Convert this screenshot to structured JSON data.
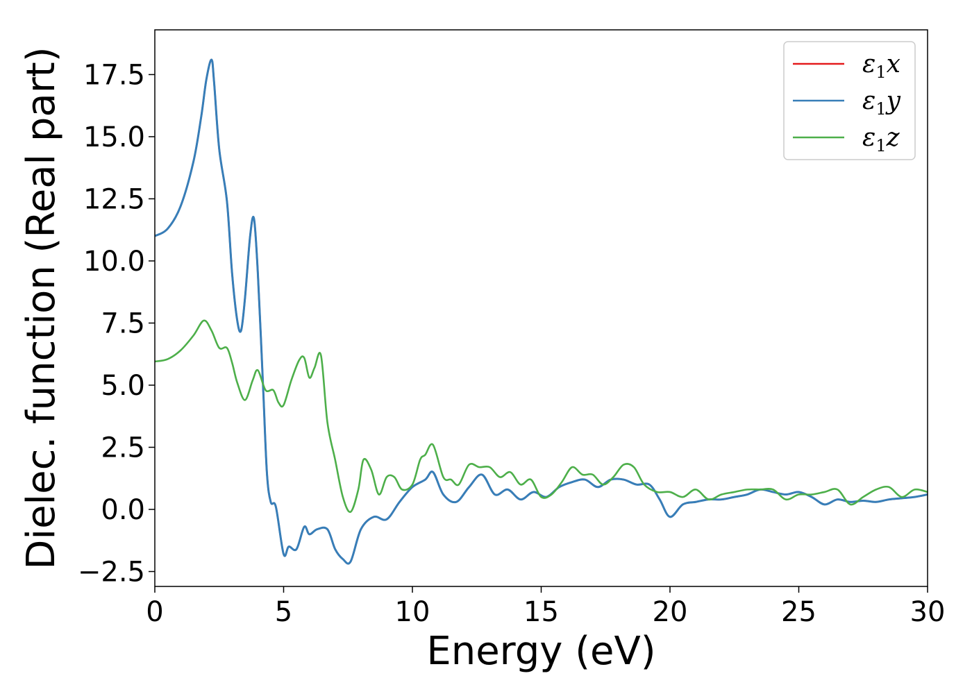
{
  "chart_data": {
    "type": "line",
    "xlabel": "Energy (eV)",
    "ylabel": "Dielec. function (Real part)",
    "xlim": [
      0,
      30
    ],
    "ylim": [
      -3.1,
      19.3
    ],
    "xticks": [
      0,
      5,
      10,
      15,
      20,
      25,
      30
    ],
    "xtick_labels": [
      "0",
      "5",
      "10",
      "15",
      "20",
      "25",
      "30"
    ],
    "yticks": [
      -2.5,
      0,
      2.5,
      5,
      7.5,
      10,
      12.5,
      15,
      17.5
    ],
    "ytick_labels": [
      "−2.5",
      "0.0",
      "2.5",
      "5.0",
      "7.5",
      "10.0",
      "12.5",
      "15.0",
      "17.5"
    ],
    "grid": false,
    "legend_position": "top-right",
    "legend": [
      {
        "symbol": "ε",
        "sub": "1",
        "axis": "x",
        "color": "#e41a1c"
      },
      {
        "symbol": "ε",
        "sub": "1",
        "axis": "y",
        "color": "#377eb8"
      },
      {
        "symbol": "ε",
        "sub": "1",
        "axis": "z",
        "color": "#4daf4a"
      }
    ],
    "series": [
      {
        "color": "#e41a1c",
        "x": [
          0,
          0.5,
          1.0,
          1.5,
          1.8,
          2.0,
          2.2,
          2.3,
          2.5,
          2.8,
          3.0,
          3.2,
          3.35,
          3.5,
          3.7,
          3.85,
          4.0,
          4.2,
          4.35,
          4.5,
          4.7,
          5.0,
          5.2,
          5.5,
          5.8,
          6.0,
          6.3,
          6.7,
          7.0,
          7.3,
          7.6,
          8.0,
          8.5,
          9.0,
          9.5,
          10.0,
          10.5,
          10.8,
          11.2,
          11.7,
          12.2,
          12.7,
          13.2,
          13.7,
          14.2,
          14.7,
          15.2,
          15.7,
          16.2,
          16.7,
          17.2,
          17.7,
          18.2,
          18.7,
          19.2,
          19.6,
          20.0,
          20.5,
          21.0,
          21.5,
          22.0,
          22.5,
          23.0,
          23.5,
          24.0,
          24.5,
          25.0,
          25.5,
          26.0,
          26.5,
          27.0,
          27.5,
          28.0,
          28.5,
          29.0,
          29.5,
          30.0
        ],
        "y": [
          11.0,
          11.3,
          12.2,
          14.0,
          15.8,
          17.3,
          18.1,
          17.2,
          14.5,
          12.4,
          9.5,
          7.6,
          7.2,
          8.5,
          11.0,
          11.7,
          9.5,
          5.0,
          1.5,
          0.3,
          0.1,
          -1.8,
          -1.5,
          -1.6,
          -0.7,
          -1.0,
          -0.8,
          -0.8,
          -1.6,
          -2.0,
          -2.1,
          -0.8,
          -0.3,
          -0.4,
          0.3,
          0.9,
          1.2,
          1.5,
          0.6,
          0.3,
          0.9,
          1.4,
          0.6,
          0.8,
          0.4,
          0.7,
          0.5,
          0.9,
          1.1,
          1.2,
          0.9,
          1.2,
          1.2,
          1.0,
          1.0,
          0.4,
          -0.3,
          0.2,
          0.3,
          0.4,
          0.4,
          0.5,
          0.6,
          0.8,
          0.7,
          0.6,
          0.7,
          0.5,
          0.2,
          0.4,
          0.3,
          0.35,
          0.3,
          0.4,
          0.45,
          0.5,
          0.6
        ]
      },
      {
        "color": "#377eb8",
        "x": [
          0,
          0.5,
          1.0,
          1.5,
          1.8,
          2.0,
          2.2,
          2.3,
          2.5,
          2.8,
          3.0,
          3.2,
          3.35,
          3.5,
          3.7,
          3.85,
          4.0,
          4.2,
          4.35,
          4.5,
          4.7,
          5.0,
          5.2,
          5.5,
          5.8,
          6.0,
          6.3,
          6.7,
          7.0,
          7.3,
          7.6,
          8.0,
          8.5,
          9.0,
          9.5,
          10.0,
          10.5,
          10.8,
          11.2,
          11.7,
          12.2,
          12.7,
          13.2,
          13.7,
          14.2,
          14.7,
          15.2,
          15.7,
          16.2,
          16.7,
          17.2,
          17.7,
          18.2,
          18.7,
          19.2,
          19.6,
          20.0,
          20.5,
          21.0,
          21.5,
          22.0,
          22.5,
          23.0,
          23.5,
          24.0,
          24.5,
          25.0,
          25.5,
          26.0,
          26.5,
          27.0,
          27.5,
          28.0,
          28.5,
          29.0,
          29.5,
          30.0
        ],
        "y": [
          11.0,
          11.3,
          12.2,
          14.0,
          15.8,
          17.3,
          18.1,
          17.2,
          14.5,
          12.4,
          9.5,
          7.6,
          7.2,
          8.5,
          11.0,
          11.7,
          9.5,
          5.0,
          1.5,
          0.3,
          0.1,
          -1.8,
          -1.5,
          -1.6,
          -0.7,
          -1.0,
          -0.8,
          -0.8,
          -1.6,
          -2.0,
          -2.1,
          -0.8,
          -0.3,
          -0.4,
          0.3,
          0.9,
          1.2,
          1.5,
          0.6,
          0.3,
          0.9,
          1.4,
          0.6,
          0.8,
          0.4,
          0.7,
          0.5,
          0.9,
          1.1,
          1.2,
          0.9,
          1.2,
          1.2,
          1.0,
          1.0,
          0.4,
          -0.3,
          0.2,
          0.3,
          0.4,
          0.4,
          0.5,
          0.6,
          0.8,
          0.7,
          0.6,
          0.7,
          0.5,
          0.2,
          0.4,
          0.3,
          0.35,
          0.3,
          0.4,
          0.45,
          0.5,
          0.6
        ]
      },
      {
        "color": "#4daf4a",
        "x": [
          0,
          0.5,
          1.0,
          1.5,
          1.9,
          2.2,
          2.5,
          2.8,
          3.0,
          3.2,
          3.5,
          3.8,
          4.0,
          4.3,
          4.6,
          4.8,
          5.0,
          5.3,
          5.6,
          5.8,
          6.0,
          6.2,
          6.45,
          6.7,
          7.0,
          7.3,
          7.6,
          7.9,
          8.1,
          8.4,
          8.7,
          9.0,
          9.3,
          9.6,
          10.0,
          10.3,
          10.5,
          10.8,
          11.2,
          11.5,
          11.8,
          12.2,
          12.6,
          13.0,
          13.4,
          13.8,
          14.2,
          14.6,
          15.0,
          15.4,
          15.8,
          16.2,
          16.6,
          17.0,
          17.4,
          17.8,
          18.2,
          18.6,
          19.0,
          19.5,
          20.0,
          20.5,
          21.0,
          21.5,
          22.0,
          22.5,
          23.0,
          23.5,
          24.0,
          24.5,
          25.0,
          25.5,
          26.0,
          26.5,
          27.0,
          27.5,
          28.0,
          28.5,
          29.0,
          29.5,
          30.0
        ],
        "y": [
          5.95,
          6.05,
          6.4,
          7.0,
          7.6,
          7.2,
          6.5,
          6.5,
          5.9,
          5.1,
          4.4,
          5.2,
          5.6,
          4.8,
          4.8,
          4.3,
          4.2,
          5.2,
          6.0,
          6.1,
          5.3,
          5.7,
          6.2,
          3.5,
          2.0,
          0.5,
          -0.1,
          0.8,
          2.0,
          1.6,
          0.6,
          1.3,
          1.3,
          0.8,
          1.0,
          2.0,
          2.2,
          2.6,
          1.3,
          1.2,
          1.0,
          1.8,
          1.7,
          1.7,
          1.3,
          1.5,
          1.0,
          1.2,
          0.5,
          0.6,
          1.1,
          1.7,
          1.4,
          1.4,
          1.0,
          1.3,
          1.8,
          1.7,
          1.0,
          0.7,
          0.7,
          0.5,
          0.8,
          0.4,
          0.6,
          0.7,
          0.8,
          0.8,
          0.8,
          0.4,
          0.6,
          0.6,
          0.7,
          0.8,
          0.2,
          0.5,
          0.8,
          0.9,
          0.5,
          0.8,
          0.7
        ]
      }
    ]
  }
}
